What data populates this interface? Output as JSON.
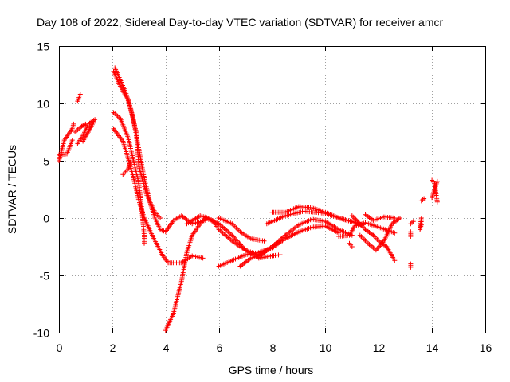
{
  "chart_data": {
    "type": "scatter",
    "title": "Day 108 of 2022, Sidereal Day-to-day VTEC variation (SDTVAR) for receiver amcr",
    "xlabel": "GPS time / hours",
    "ylabel": "SDTVAR / TECUs",
    "xlim": [
      0,
      16
    ],
    "ylim": [
      -10,
      15
    ],
    "xticks": [
      0,
      2,
      4,
      6,
      8,
      10,
      12,
      14,
      16
    ],
    "yticks": [
      -10,
      -5,
      0,
      5,
      10,
      15
    ],
    "xtick_labels": [
      "0",
      "2",
      "4",
      "6",
      "8",
      "10",
      "12",
      "14",
      "16"
    ],
    "ytick_labels": [
      "-10",
      "-5",
      "0",
      "5",
      "10",
      "15"
    ],
    "grid": true,
    "marker": "+",
    "color": "#ff0000",
    "series_anchors": [
      {
        "name": "early-1",
        "points": [
          [
            0.0,
            5.0
          ],
          [
            0.2,
            6.8
          ],
          [
            0.5,
            7.8
          ],
          [
            0.55,
            8.2
          ]
        ]
      },
      {
        "name": "early-2",
        "points": [
          [
            0.0,
            5.5
          ],
          [
            0.3,
            5.6
          ],
          [
            0.5,
            6.8
          ]
        ]
      },
      {
        "name": "early-3",
        "points": [
          [
            0.7,
            10.2
          ],
          [
            0.8,
            10.8
          ]
        ]
      },
      {
        "name": "early-4",
        "points": [
          [
            0.7,
            6.5
          ],
          [
            0.9,
            7.2
          ],
          [
            1.1,
            8.2
          ],
          [
            1.35,
            8.6
          ]
        ]
      },
      {
        "name": "early-5",
        "points": [
          [
            0.9,
            6.7
          ],
          [
            1.1,
            7.5
          ],
          [
            1.3,
            8.4
          ]
        ]
      },
      {
        "name": "early-6",
        "points": [
          [
            0.6,
            7.5
          ],
          [
            0.85,
            8.0
          ],
          [
            1.0,
            8.2
          ]
        ]
      },
      {
        "name": "a",
        "points": [
          [
            2.05,
            12.8
          ],
          [
            2.3,
            11.5
          ],
          [
            2.6,
            10.3
          ],
          [
            2.8,
            8.5
          ],
          [
            3.0,
            6.0
          ],
          [
            3.2,
            3.5
          ],
          [
            3.4,
            1.5
          ],
          [
            3.6,
            0.0
          ],
          [
            3.8,
            -1.0
          ],
          [
            4.0,
            -1.2
          ],
          [
            4.3,
            -0.2
          ],
          [
            4.6,
            0.2
          ],
          [
            5.0,
            -0.5
          ],
          [
            5.5,
            -0.2
          ]
        ]
      },
      {
        "name": "b",
        "points": [
          [
            2.1,
            13.1
          ],
          [
            2.5,
            11.0
          ],
          [
            2.7,
            9.5
          ],
          [
            2.9,
            7.5
          ],
          [
            3.0,
            4.5
          ],
          [
            3.3,
            2.0
          ],
          [
            3.6,
            0.5
          ],
          [
            3.8,
            0.0
          ]
        ]
      },
      {
        "name": "c",
        "points": [
          [
            2.05,
            9.2
          ],
          [
            2.3,
            8.7
          ],
          [
            2.6,
            7.0
          ],
          [
            2.8,
            5.0
          ],
          [
            3.0,
            3.0
          ],
          [
            3.1,
            1.0
          ],
          [
            3.2,
            -1.5
          ],
          [
            3.2,
            -2.2
          ]
        ]
      },
      {
        "name": "d",
        "points": [
          [
            2.05,
            7.8
          ],
          [
            2.4,
            6.7
          ],
          [
            2.6,
            5.2
          ],
          [
            2.8,
            3.5
          ],
          [
            3.0,
            1.5
          ],
          [
            3.2,
            0.0
          ],
          [
            3.5,
            -1.5
          ],
          [
            3.9,
            -3.3
          ],
          [
            4.1,
            -3.9
          ],
          [
            4.6,
            -3.9
          ],
          [
            5.0,
            -3.3
          ],
          [
            5.4,
            -3.5
          ]
        ]
      },
      {
        "name": "e",
        "points": [
          [
            2.4,
            3.8
          ],
          [
            2.6,
            4.3
          ],
          [
            2.7,
            5.0
          ]
        ]
      },
      {
        "name": "f",
        "points": [
          [
            4.0,
            -9.8
          ],
          [
            4.3,
            -8.3
          ],
          [
            4.6,
            -5.5
          ],
          [
            4.8,
            -3.0
          ],
          [
            5.0,
            -1.5
          ],
          [
            5.3,
            -0.5
          ],
          [
            5.5,
            0.0
          ],
          [
            5.8,
            -0.3
          ],
          [
            6.0,
            -1.0
          ],
          [
            6.5,
            -2.0
          ],
          [
            7.0,
            -2.8
          ],
          [
            7.5,
            -3.2
          ],
          [
            8.0,
            -2.5
          ],
          [
            8.5,
            -1.5
          ],
          [
            9.0,
            -0.6
          ],
          [
            9.5,
            -0.1
          ],
          [
            10.0,
            -0.3
          ],
          [
            10.5,
            -1.0
          ],
          [
            11.0,
            -1.5
          ]
        ]
      },
      {
        "name": "g",
        "points": [
          [
            4.8,
            -0.5
          ],
          [
            5.3,
            0.2
          ],
          [
            5.6,
            0.0
          ],
          [
            6.0,
            -0.5
          ],
          [
            6.5,
            -1.5
          ],
          [
            7.0,
            -2.8
          ],
          [
            7.5,
            -3.5
          ],
          [
            8.0,
            -3.3
          ],
          [
            8.3,
            -3.2
          ]
        ]
      },
      {
        "name": "h",
        "points": [
          [
            6.0,
            0.0
          ],
          [
            6.5,
            -0.5
          ],
          [
            6.8,
            -1.2
          ],
          [
            7.2,
            -1.8
          ],
          [
            7.7,
            -2.0
          ]
        ]
      },
      {
        "name": "i",
        "points": [
          [
            6.0,
            -4.2
          ],
          [
            6.5,
            -3.7
          ],
          [
            7.0,
            -3.2
          ],
          [
            7.5,
            -3.0
          ],
          [
            8.0,
            -2.6
          ],
          [
            8.5,
            -1.8
          ],
          [
            9.0,
            -1.2
          ],
          [
            9.5,
            -0.8
          ],
          [
            10.0,
            -0.7
          ],
          [
            10.5,
            -1.3
          ]
        ]
      },
      {
        "name": "j",
        "points": [
          [
            6.8,
            -4.2
          ],
          [
            7.2,
            -3.5
          ],
          [
            7.6,
            -3.2
          ],
          [
            8.0,
            -2.5
          ],
          [
            8.5,
            -1.5
          ]
        ]
      },
      {
        "name": "k",
        "points": [
          [
            8.0,
            0.5
          ],
          [
            8.5,
            0.5
          ],
          [
            9.0,
            1.0
          ],
          [
            9.5,
            0.9
          ],
          [
            10.0,
            0.5
          ],
          [
            10.5,
            0.0
          ],
          [
            11.0,
            -0.3
          ]
        ]
      },
      {
        "name": "l",
        "points": [
          [
            7.8,
            -0.5
          ],
          [
            8.5,
            0.2
          ],
          [
            9.2,
            0.6
          ],
          [
            10.0,
            0.4
          ],
          [
            10.8,
            -0.2
          ],
          [
            11.4,
            -0.6
          ]
        ]
      },
      {
        "name": "m",
        "points": [
          [
            10.5,
            -1.6
          ],
          [
            10.9,
            -1.5
          ],
          [
            11.1,
            -0.7
          ],
          [
            11.5,
            -0.4
          ],
          [
            12.0,
            -0.8
          ],
          [
            12.6,
            -1.3
          ]
        ]
      },
      {
        "name": "n",
        "points": [
          [
            11.0,
            0.2
          ],
          [
            11.5,
            -1.0
          ],
          [
            11.8,
            -1.5
          ],
          [
            12.0,
            -2.0
          ],
          [
            12.3,
            -2.5
          ],
          [
            12.6,
            -3.7
          ]
        ]
      },
      {
        "name": "o",
        "points": [
          [
            11.3,
            -1.5
          ],
          [
            11.6,
            -2.2
          ],
          [
            11.9,
            -2.8
          ],
          [
            12.2,
            -2.0
          ],
          [
            12.5,
            -0.5
          ],
          [
            12.8,
            0.0
          ]
        ]
      },
      {
        "name": "p",
        "points": [
          [
            11.5,
            0.3
          ],
          [
            11.8,
            -0.2
          ],
          [
            12.2,
            0.1
          ],
          [
            12.6,
            0.0
          ]
        ]
      },
      {
        "name": "q",
        "points": [
          [
            11.0,
            -2.5
          ],
          [
            10.9,
            -2.2
          ]
        ]
      },
      {
        "name": "r",
        "points": [
          [
            13.2,
            -1.2
          ],
          [
            13.2,
            -1.6
          ]
        ]
      },
      {
        "name": "s",
        "points": [
          [
            13.2,
            -4.0
          ],
          [
            13.2,
            -4.3
          ]
        ]
      },
      {
        "name": "t",
        "points": [
          [
            13.2,
            -0.5
          ],
          [
            13.3,
            -0.3
          ]
        ]
      },
      {
        "name": "u",
        "points": [
          [
            13.6,
            -0.3
          ],
          [
            13.6,
            0.0
          ],
          [
            13.55,
            -0.8
          ]
        ]
      },
      {
        "name": "v",
        "points": [
          [
            13.6,
            1.5
          ],
          [
            13.7,
            1.7
          ]
        ]
      },
      {
        "name": "w",
        "points": [
          [
            13.55,
            -1.0
          ],
          [
            13.6,
            -0.6
          ]
        ]
      },
      {
        "name": "x",
        "points": [
          [
            14.0,
            1.8
          ],
          [
            14.1,
            2.5
          ],
          [
            14.2,
            3.2
          ]
        ]
      },
      {
        "name": "y",
        "points": [
          [
            14.0,
            3.3
          ],
          [
            14.1,
            3.0
          ],
          [
            14.2,
            1.4
          ]
        ]
      }
    ]
  }
}
